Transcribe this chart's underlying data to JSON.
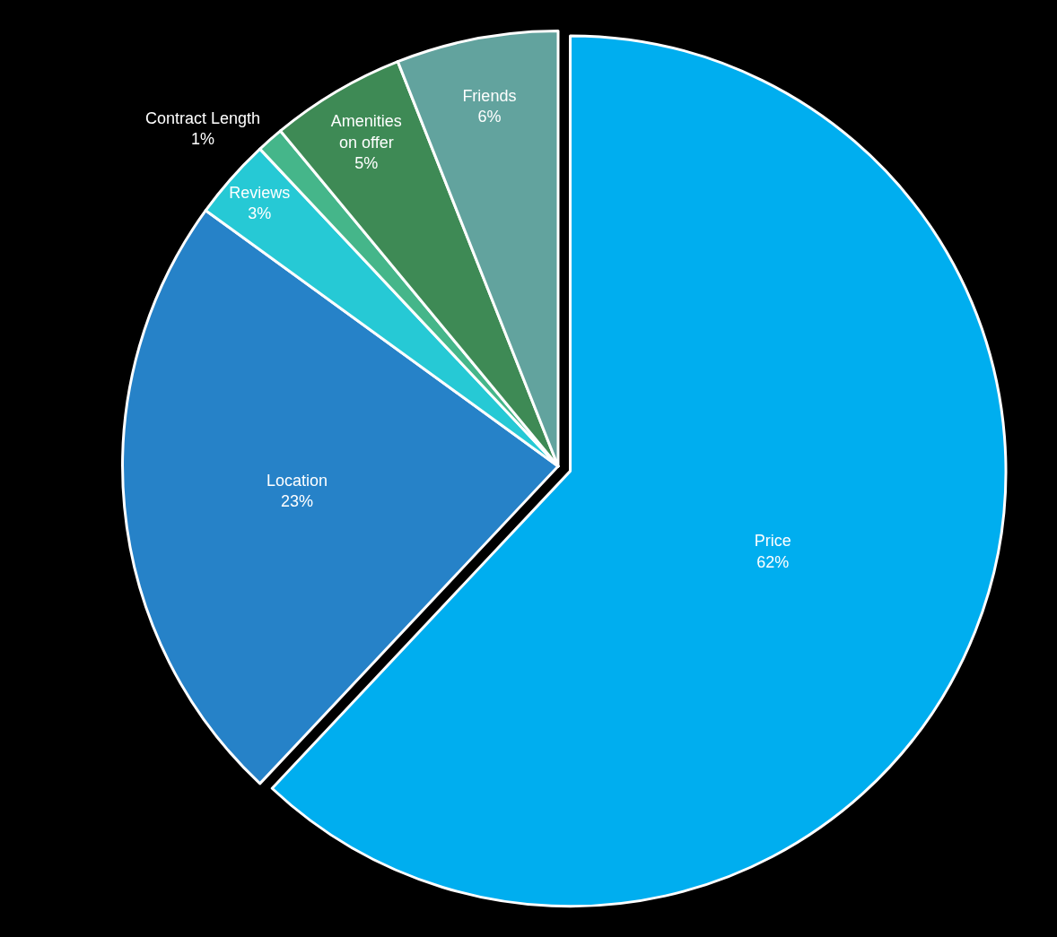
{
  "chart_data": {
    "type": "pie",
    "categories": [
      "Price",
      "Location",
      "Reviews",
      "Contract Length",
      "Amenities\non offer",
      "Friends"
    ],
    "values": [
      62,
      23,
      3,
      1,
      5,
      6
    ],
    "value_labels": [
      "62%",
      "23%",
      "3%",
      "1%",
      "5%",
      "6%"
    ],
    "colors": [
      "#00aeef",
      "#2682c8",
      "#26c9d5",
      "#45b68a",
      "#3e8a55",
      "#62a39e"
    ],
    "legend": false
  }
}
